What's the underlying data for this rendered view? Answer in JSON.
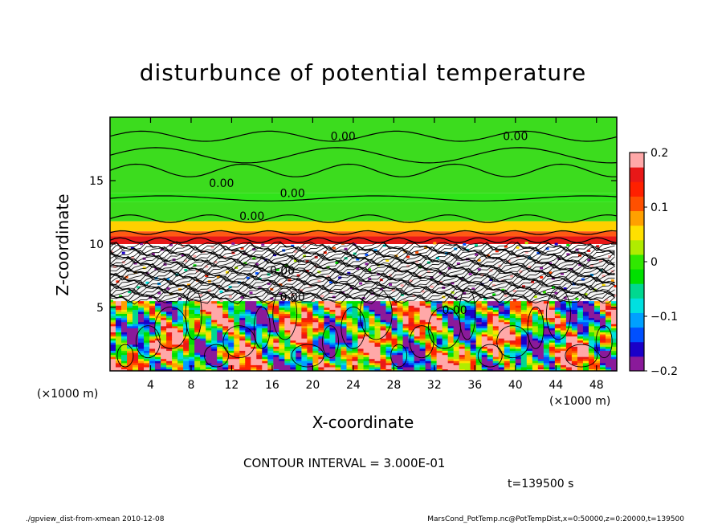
{
  "chart_data": {
    "type": "heatmap",
    "title": "disturbunce of potential temperature",
    "xlabel": "X-coordinate",
    "ylabel": "Z-coordinate",
    "x_unit": "(×1000 m)",
    "y_unit": "(×1000 m)",
    "xlim": [
      0,
      50
    ],
    "ylim": [
      0,
      20
    ],
    "x_ticks": [
      4,
      8,
      12,
      16,
      20,
      24,
      28,
      32,
      36,
      40,
      44,
      48
    ],
    "y_ticks": [
      5,
      10,
      15
    ],
    "colorbar": {
      "min": -0.2,
      "max": 0.2,
      "tick_values": [
        0.2,
        0.1,
        0,
        -0.1,
        -0.2
      ],
      "tick_labels": [
        "0.2",
        "0.1",
        "0",
        "−0.1",
        "−0.2"
      ],
      "colors": [
        "#8a1a9a",
        "#1a00c8",
        "#0050ff",
        "#00a0ff",
        "#00e0e0",
        "#00d890",
        "#00e000",
        "#30e800",
        "#b0ec00",
        "#ffe000",
        "#ffa000",
        "#ff5000",
        "#ff2000",
        "#e81818",
        "#ffa8a8"
      ]
    },
    "contour_interval": "CONTOUR INTERVAL = 3.000E-01",
    "contour_labels": [
      "0.00",
      "0.00",
      "0.00",
      "0.00",
      "0.00",
      "0.00",
      "0.00",
      "0.00"
    ],
    "time_label": "t=139500 s",
    "footer_left": "./gpview_dist-from-xmean  2010-12-08",
    "footer_right": "MarsCond_PotTemp.nc@PotTempDist,x=0:50000,z=0:20000,t=139500",
    "palette": {
      "green": "#3cdc1e",
      "orange_band": "#ff5a14",
      "red_band": "#e81818"
    }
  }
}
